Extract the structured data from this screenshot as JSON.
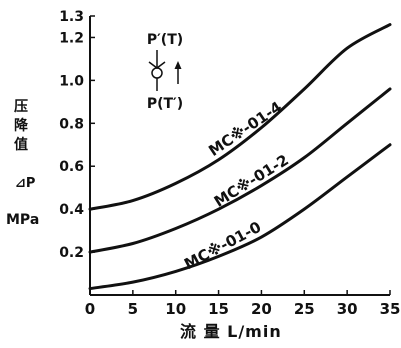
{
  "chart_data": {
    "type": "line",
    "title": "",
    "xlabel": "流 量 L/min",
    "ylabel_cn": "压降值",
    "ylabel_symbol": "⊿P",
    "ylabel_unit": "MPa",
    "x_ticks": [
      "0",
      "5",
      "10",
      "15",
      "20",
      "25",
      "30",
      "35"
    ],
    "y_ticks": [
      "0.2",
      "0.4",
      "0.6",
      "0.8",
      "1.0",
      "1.2",
      "1.3"
    ],
    "y_tick_values": [
      0.2,
      0.4,
      0.6,
      0.8,
      1.0,
      1.2,
      1.3
    ],
    "xlim": [
      0,
      35
    ],
    "ylim": [
      0,
      1.3
    ],
    "grid": false,
    "series": [
      {
        "name": "MC※-01-4",
        "x": [
          0,
          5,
          10,
          15,
          20,
          25,
          30,
          35
        ],
        "y": [
          0.4,
          0.44,
          0.52,
          0.63,
          0.78,
          0.96,
          1.15,
          1.26
        ]
      },
      {
        "name": "MC※-01-2",
        "x": [
          0,
          5,
          10,
          15,
          20,
          25,
          30,
          35
        ],
        "y": [
          0.2,
          0.24,
          0.31,
          0.4,
          0.51,
          0.64,
          0.8,
          0.96
        ]
      },
      {
        "name": "MC※-01-0",
        "x": [
          0,
          5,
          10,
          15,
          20,
          25,
          30,
          35
        ],
        "y": [
          0.03,
          0.06,
          0.11,
          0.18,
          0.27,
          0.4,
          0.55,
          0.7
        ]
      }
    ],
    "symbol_labels": {
      "top": "P′(T)",
      "bottom": "P(T′)"
    },
    "line_color": "#111111"
  }
}
